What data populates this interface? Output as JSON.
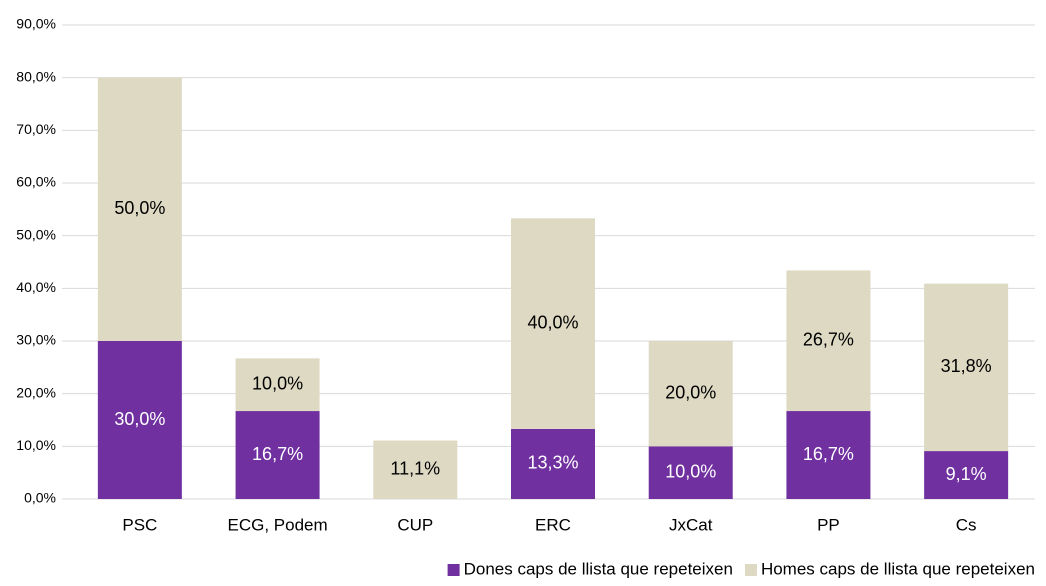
{
  "chart_data": {
    "type": "stacked_bar",
    "categories": [
      "PSC",
      "ECG, Podem",
      "CUP",
      "ERC",
      "JxCat",
      "PP",
      "Cs"
    ],
    "series": [
      {
        "name": "Dones caps de llista que repeteixen",
        "color": "#7030a0",
        "label_color": "#ffffff",
        "values": [
          30.0,
          16.7,
          null,
          13.3,
          10.0,
          16.7,
          9.1
        ],
        "value_labels": [
          "30,0%",
          "16,7%",
          null,
          "13,3%",
          "10,0%",
          "16,7%",
          "9,1%"
        ]
      },
      {
        "name": "Homes caps de llista que repeteixen",
        "color": "#ddd9c3",
        "label_color": "#000000",
        "values": [
          50.0,
          10.0,
          11.1,
          40.0,
          20.0,
          26.7,
          31.8
        ],
        "value_labels": [
          "50,0%",
          "10,0%",
          "11,1%",
          "40,0%",
          "20,0%",
          "26,7%",
          "31,8%"
        ]
      }
    ],
    "ylim": [
      0,
      90
    ],
    "yticks": [
      {
        "value": 0,
        "label": "0,0%"
      },
      {
        "value": 10,
        "label": "10,0%"
      },
      {
        "value": 20,
        "label": "20,0%"
      },
      {
        "value": 30,
        "label": "30,0%"
      },
      {
        "value": 40,
        "label": "40,0%"
      },
      {
        "value": 50,
        "label": "50,0%"
      },
      {
        "value": 60,
        "label": "60,0%"
      },
      {
        "value": 70,
        "label": "70,0%"
      },
      {
        "value": 80,
        "label": "80,0%"
      },
      {
        "value": 90,
        "label": "90,0%"
      }
    ],
    "grid": true,
    "legend": "bottom-right"
  }
}
